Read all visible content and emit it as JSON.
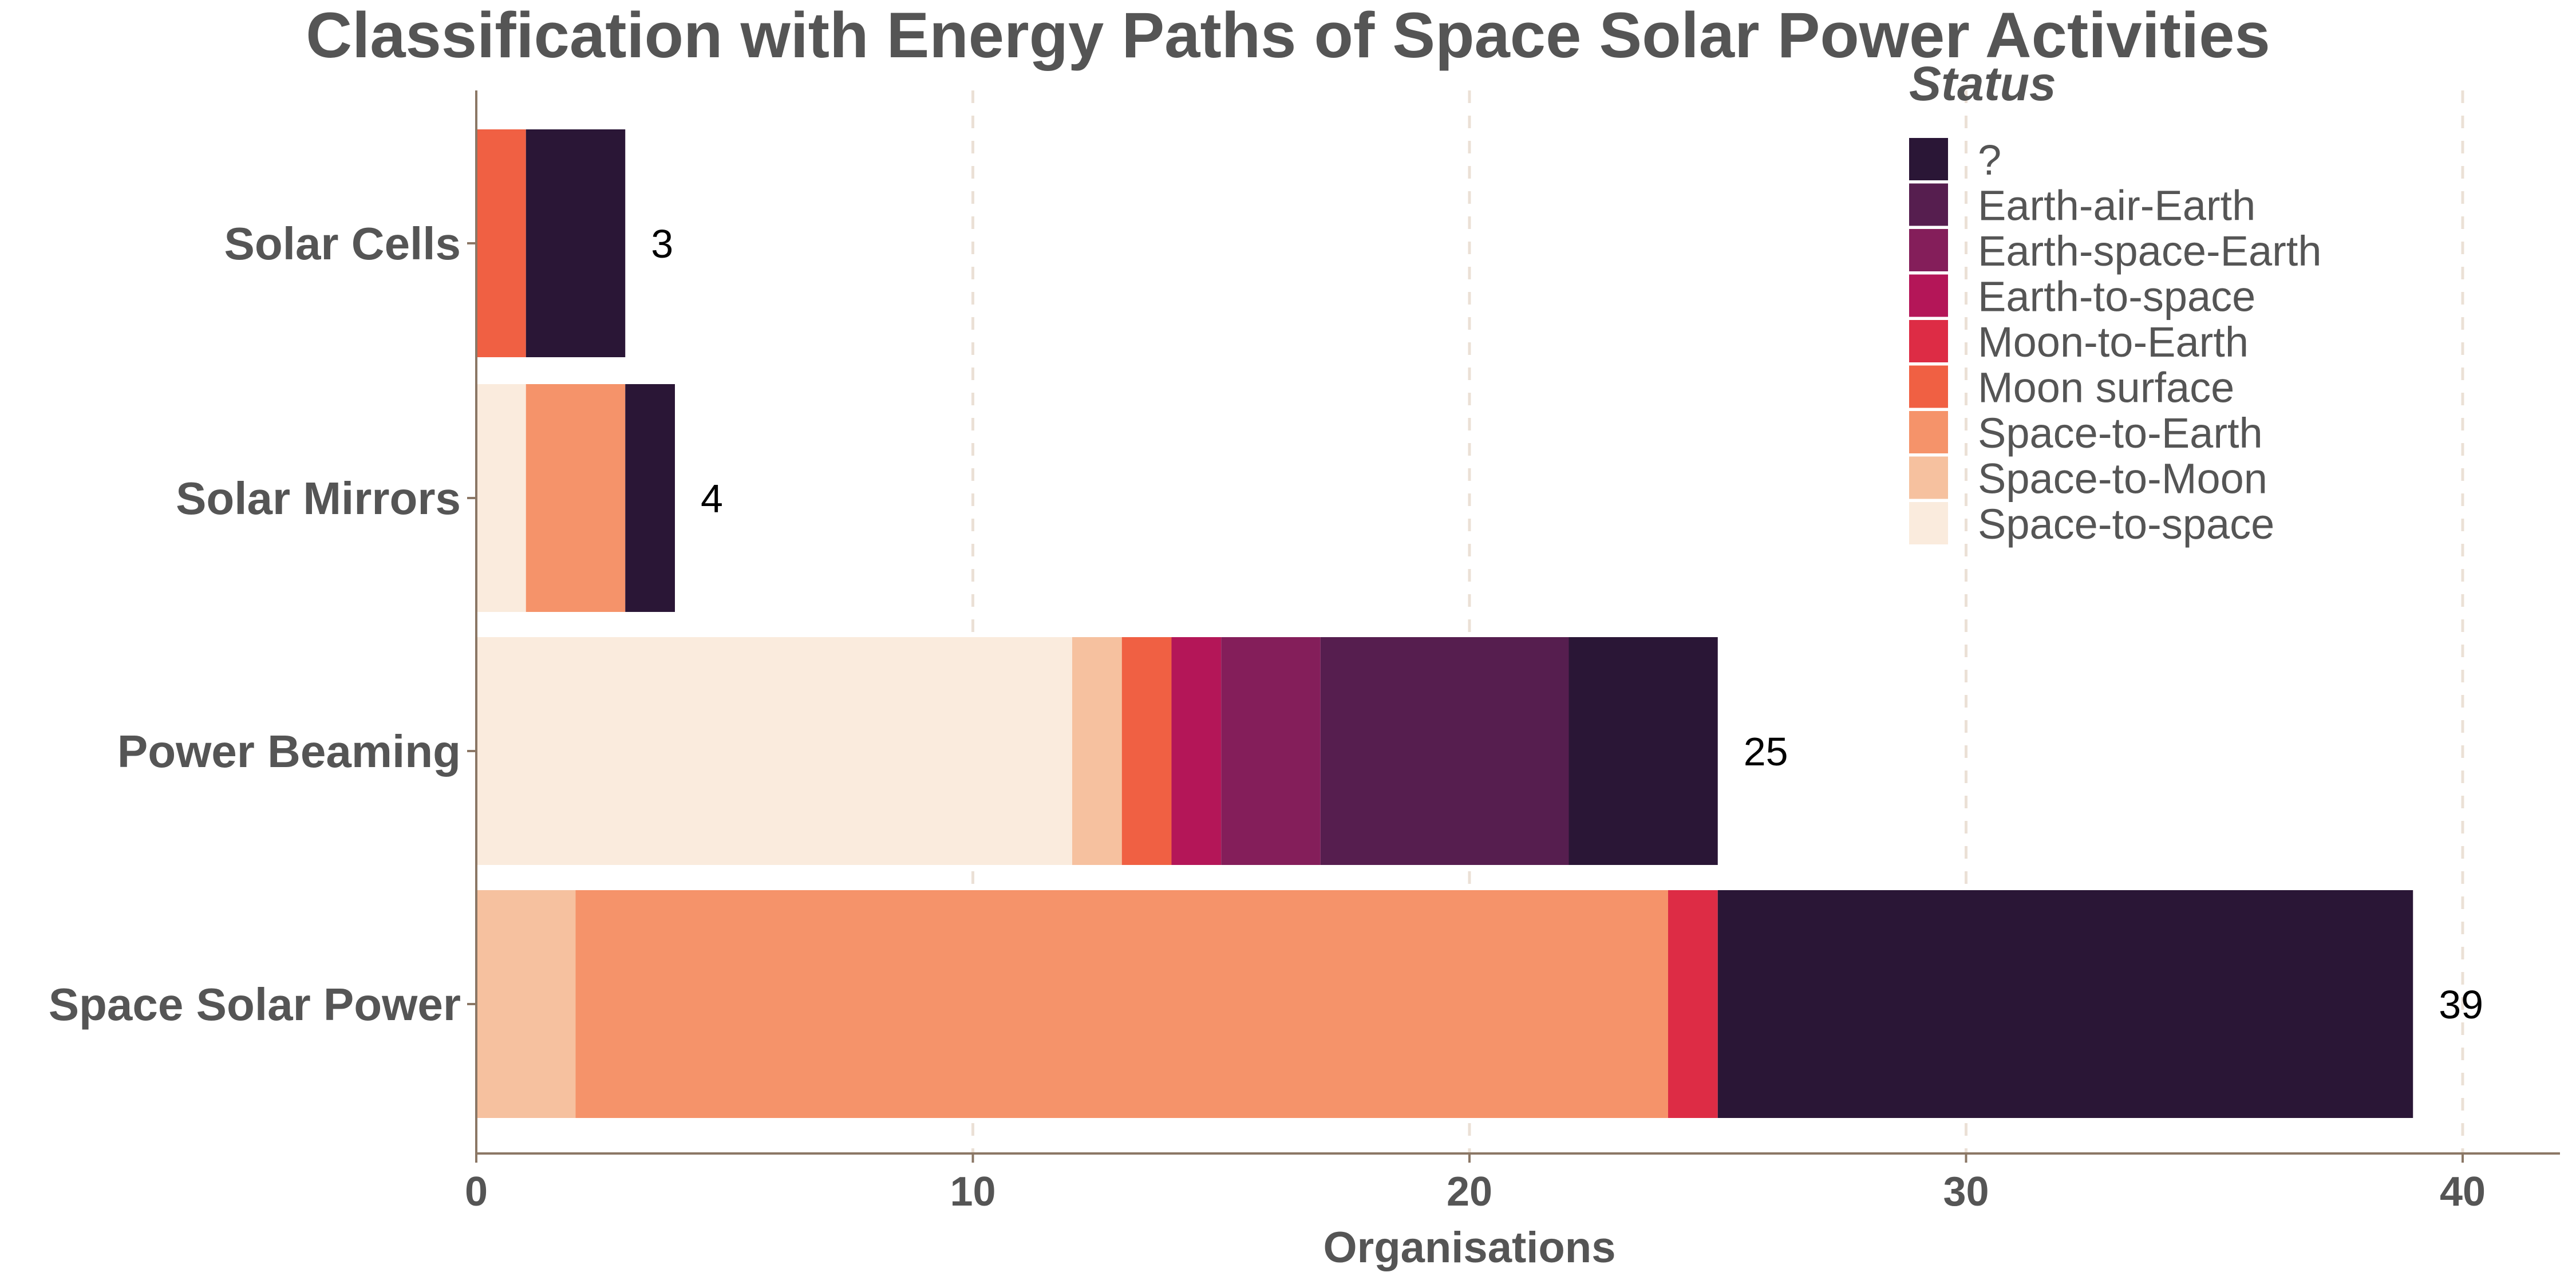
{
  "chart_data": {
    "type": "bar",
    "orientation": "horizontal",
    "stacked": true,
    "title": "Classification with Energy Paths of Space Solar Power Activities",
    "xlabel": "Organisations",
    "ylabel": "",
    "xlim": [
      0,
      42
    ],
    "xticks": [
      "0",
      "10",
      "20",
      "30",
      "40"
    ],
    "grid": "vertical dashed",
    "categories": [
      "Solar Cells",
      "Solar Mirrors",
      "Power Beaming",
      "Space Solar Power"
    ],
    "totals": [
      "3",
      "4",
      "25",
      "39"
    ],
    "legend": {
      "title": "Status",
      "placement": "top-right",
      "entries": [
        "?",
        "Earth-air-Earth",
        "Earth-space-Earth",
        "Earth-to-space",
        "Moon-to-Earth",
        "Moon surface",
        "Space-to-Earth",
        "Space-to-Moon",
        "Space-to-space"
      ]
    },
    "colors": {
      "?": "#2A1636",
      "Earth-air-Earth": "#561E4F",
      "Earth-space-Earth": "#841E5A",
      "Earth-to-space": "#B41658",
      "Moon-to-Earth": "#DD2C45",
      "Moon surface": "#F06043",
      "Space-to-Earth": "#F5936A",
      "Space-to-Moon": "#F6C19F",
      "Space-to-space": "#FAEBDD"
    },
    "stack_order": [
      "Space-to-space",
      "Space-to-Moon",
      "Space-to-Earth",
      "Moon surface",
      "Moon-to-Earth",
      "Earth-to-space",
      "Earth-space-Earth",
      "Earth-air-Earth",
      "?"
    ],
    "series": [
      {
        "name": "Space-to-space",
        "values": [
          0,
          1,
          12,
          0
        ]
      },
      {
        "name": "Space-to-Moon",
        "values": [
          0,
          0,
          1,
          2
        ]
      },
      {
        "name": "Space-to-Earth",
        "values": [
          0,
          2,
          0,
          22
        ]
      },
      {
        "name": "Moon surface",
        "values": [
          1,
          0,
          1,
          0
        ]
      },
      {
        "name": "Moon-to-Earth",
        "values": [
          0,
          0,
          0,
          1
        ]
      },
      {
        "name": "Earth-to-space",
        "values": [
          0,
          0,
          1,
          0
        ]
      },
      {
        "name": "Earth-space-Earth",
        "values": [
          0,
          0,
          2,
          0
        ]
      },
      {
        "name": "Earth-air-Earth",
        "values": [
          0,
          0,
          5,
          0
        ]
      },
      {
        "name": "?",
        "values": [
          2,
          1,
          3,
          14
        ]
      }
    ]
  }
}
